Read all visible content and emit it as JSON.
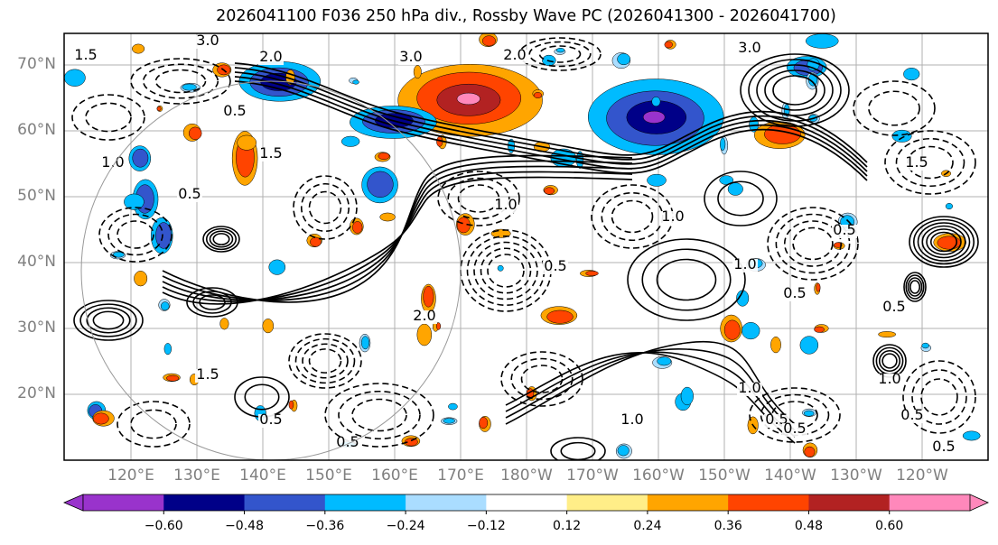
{
  "title": "2026041100 F036 250 hPa div., Rossby Wave PC (2026041300 - 2026041700)",
  "map": {
    "lat_labels": [
      "70°N",
      "60°N",
      "50°N",
      "40°N",
      "30°N",
      "20°N"
    ],
    "lon_labels": [
      "120°E",
      "130°E",
      "140°E",
      "150°E",
      "160°E",
      "170°E",
      "180°W",
      "170°W",
      "160°W",
      "150°W",
      "140°W",
      "130°W",
      "120°W"
    ],
    "contour_labels": [
      "3.0",
      "1.5",
      "2.0",
      "3.0",
      "0.5",
      "1.0",
      "0.5",
      "1.5",
      "2.0",
      "0.5",
      "1.0",
      "0.5",
      "1.5",
      "3.0",
      "0.5",
      "1.0",
      "0.5",
      "1.0",
      "0.5",
      "0.5",
      "1.0",
      "0.5",
      "1.5",
      "2.0",
      "1.0",
      "0.5",
      "1.0",
      "0.5",
      "0.5"
    ],
    "blob_colors": [
      "#9933cc",
      "#000088",
      "#3355cc",
      "#00bbff",
      "#aaddff",
      "#ffee88",
      "#ffa500",
      "#ff4400",
      "#b22222",
      "#ff88bb"
    ]
  },
  "colorbar": {
    "colors": [
      "#9933cc",
      "#000088",
      "#3355cc",
      "#00bbff",
      "#aaddff",
      "#ffffff",
      "#ffee88",
      "#ffa500",
      "#ff4400",
      "#b22222",
      "#ff88bb"
    ],
    "tick_labels": [
      "−0.60",
      "−0.48",
      "−0.36",
      "−0.24",
      "−0.12",
      "0.12",
      "0.24",
      "0.36",
      "0.48",
      "0.60"
    ]
  }
}
